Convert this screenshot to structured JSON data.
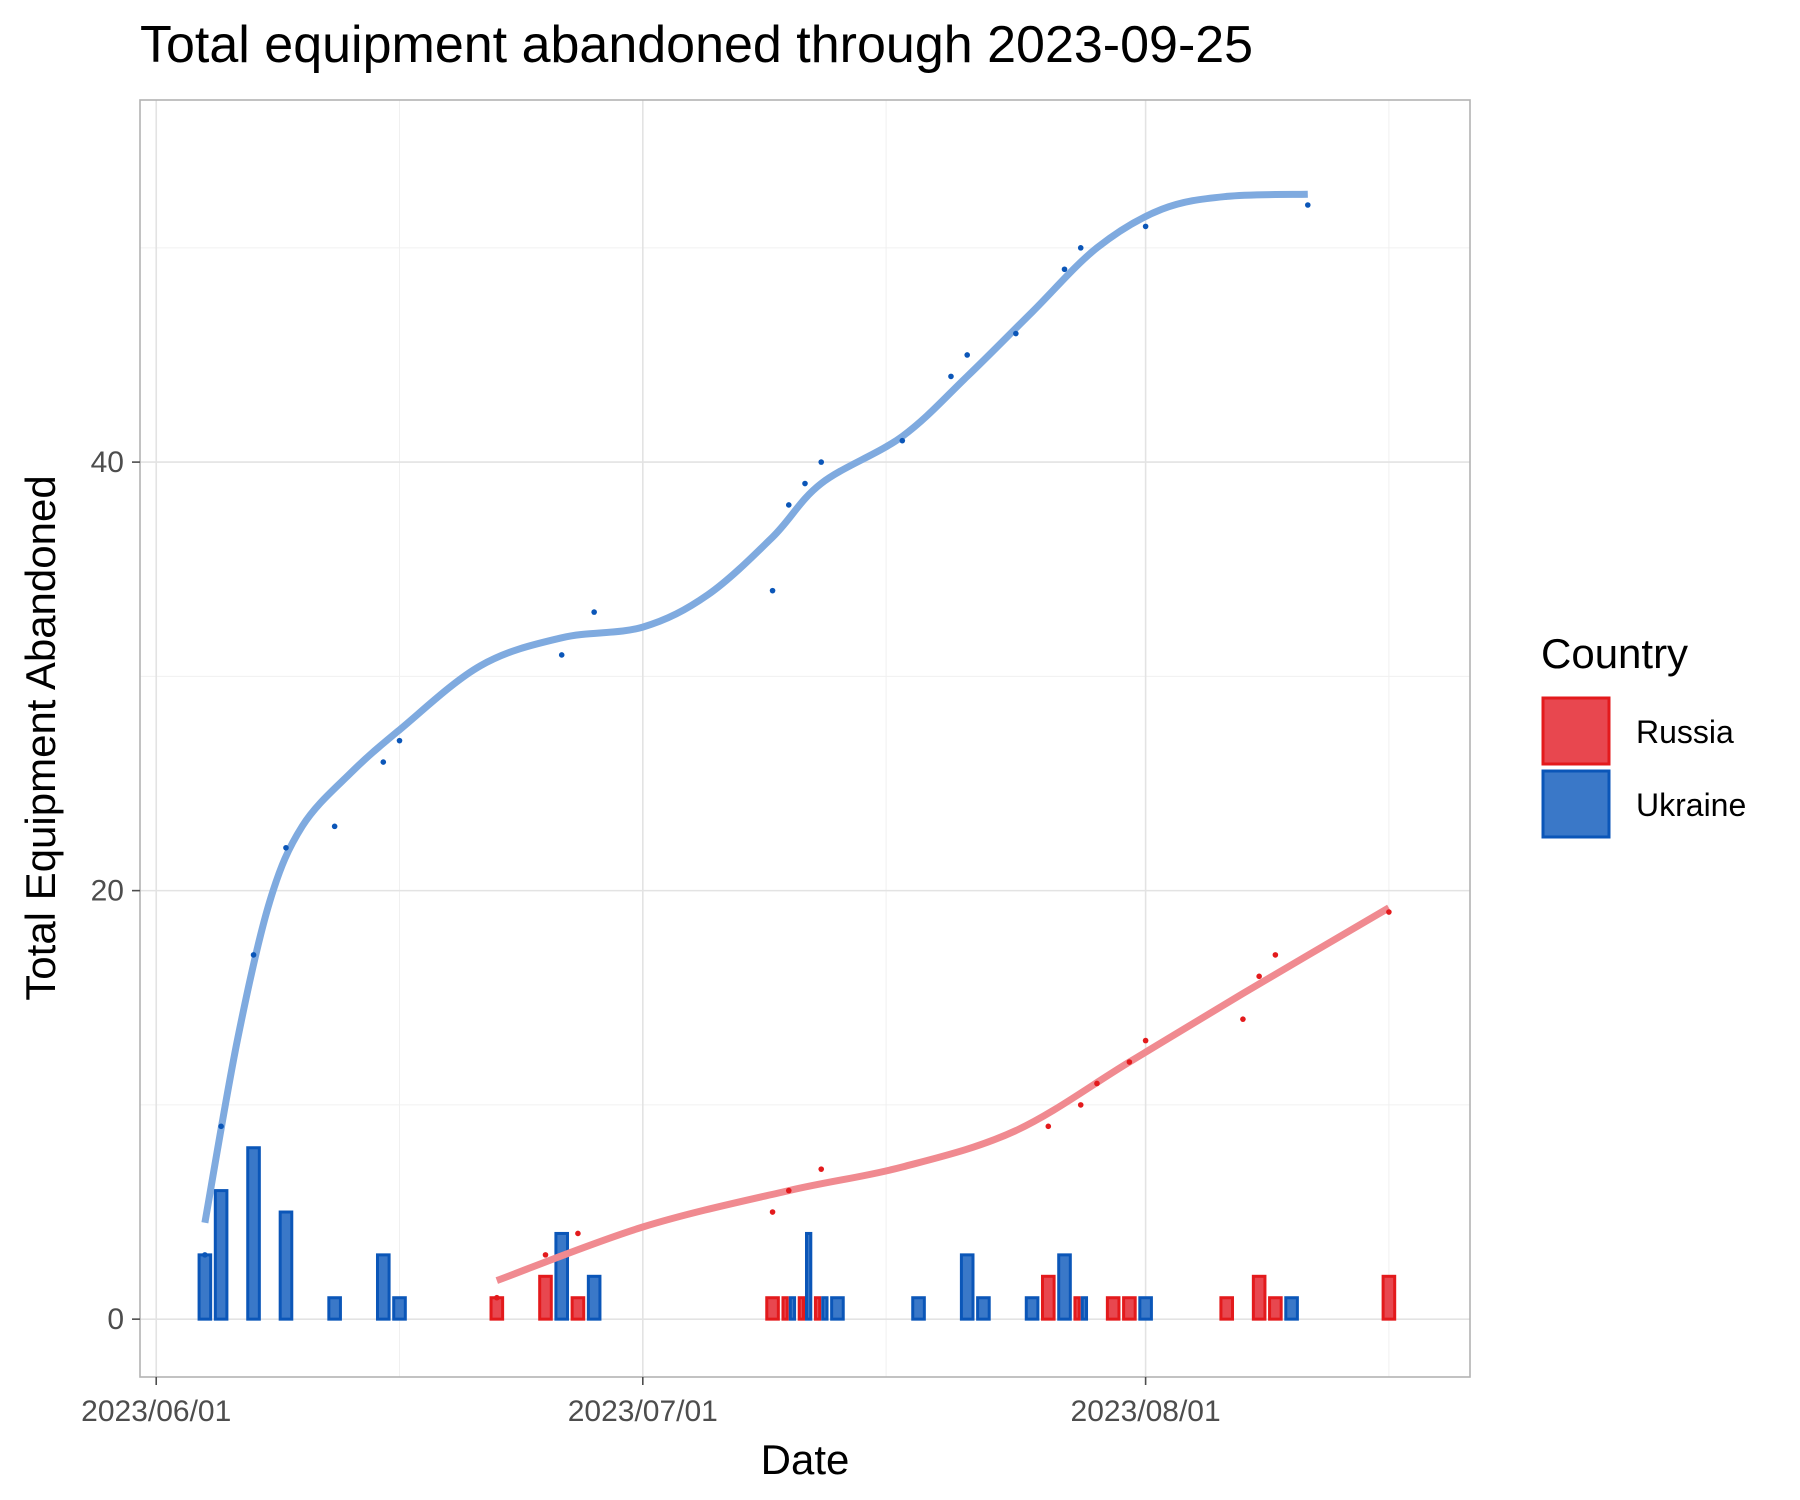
{
  "chart_data": {
    "type": "bar",
    "title": "Total equipment abandoned through 2023-09-25",
    "xlabel": "Date",
    "ylabel": "Total Equipment Abandoned",
    "x_tick_labels": [
      "2023/06/01",
      "2023/07/01",
      "2023/08/01"
    ],
    "y_tick_labels": [
      "0",
      "20",
      "40"
    ],
    "y_ticks": [
      0,
      20,
      40
    ],
    "xlim": [
      "2023-05-31",
      "2023-08-21"
    ],
    "ylim": [
      -2.7,
      56.9
    ],
    "grid": true,
    "legend": {
      "title": "Country",
      "position": "right",
      "entries": [
        "Russia",
        "Ukraine"
      ]
    },
    "colors": {
      "Russia": {
        "fill": "#e8474f",
        "stroke": "#e31a1c",
        "line": "#f08a90"
      },
      "Ukraine": {
        "fill": "#3a78c8",
        "stroke": "#0b56b8",
        "line": "#7faadf"
      }
    },
    "series": [
      {
        "name": "Russia",
        "daily": [
          {
            "date": "2023-06-22",
            "value": 1
          },
          {
            "date": "2023-06-25",
            "value": 2
          },
          {
            "date": "2023-06-27",
            "value": 1
          },
          {
            "date": "2023-07-09",
            "value": 1
          },
          {
            "date": "2023-07-10",
            "value": 1
          },
          {
            "date": "2023-07-11",
            "value": 1
          },
          {
            "date": "2023-07-12",
            "value": 1
          },
          {
            "date": "2023-07-26",
            "value": 2
          },
          {
            "date": "2023-07-28",
            "value": 1
          },
          {
            "date": "2023-07-30",
            "value": 1
          },
          {
            "date": "2023-07-31",
            "value": 1
          },
          {
            "date": "2023-08-06",
            "value": 1
          },
          {
            "date": "2023-08-08",
            "value": 2
          },
          {
            "date": "2023-08-09",
            "value": 1
          },
          {
            "date": "2023-08-16",
            "value": 2
          }
        ],
        "cumulative": [
          {
            "date": "2023-06-22",
            "value": 1
          },
          {
            "date": "2023-06-25",
            "value": 3
          },
          {
            "date": "2023-06-27",
            "value": 4
          },
          {
            "date": "2023-07-09",
            "value": 5
          },
          {
            "date": "2023-07-10",
            "value": 6
          },
          {
            "date": "2023-07-12",
            "value": 7
          },
          {
            "date": "2023-07-26",
            "value": 9
          },
          {
            "date": "2023-07-28",
            "value": 10
          },
          {
            "date": "2023-07-29",
            "value": 11
          },
          {
            "date": "2023-07-31",
            "value": 12
          },
          {
            "date": "2023-08-01",
            "value": 13
          },
          {
            "date": "2023-08-07",
            "value": 14
          },
          {
            "date": "2023-08-08",
            "value": 16
          },
          {
            "date": "2023-08-09",
            "value": 17
          },
          {
            "date": "2023-08-16",
            "value": 19
          }
        ],
        "smooth": [
          {
            "date": "2023-06-22",
            "value": 1.8
          },
          {
            "date": "2023-07-01",
            "value": 4.3
          },
          {
            "date": "2023-07-10",
            "value": 6.0
          },
          {
            "date": "2023-07-17",
            "value": 7.1
          },
          {
            "date": "2023-07-24",
            "value": 8.8
          },
          {
            "date": "2023-07-31",
            "value": 12.0
          },
          {
            "date": "2023-08-07",
            "value": 15.2
          },
          {
            "date": "2023-08-16",
            "value": 19.2
          }
        ]
      },
      {
        "name": "Ukraine",
        "daily": [
          {
            "date": "2023-06-04",
            "value": 3
          },
          {
            "date": "2023-06-05",
            "value": 6
          },
          {
            "date": "2023-06-07",
            "value": 8
          },
          {
            "date": "2023-06-09",
            "value": 5
          },
          {
            "date": "2023-06-12",
            "value": 1
          },
          {
            "date": "2023-06-15",
            "value": 3
          },
          {
            "date": "2023-06-16",
            "value": 1
          },
          {
            "date": "2023-06-26",
            "value": 4
          },
          {
            "date": "2023-06-28",
            "value": 2
          },
          {
            "date": "2023-07-10",
            "value": 1
          },
          {
            "date": "2023-07-11",
            "value": 4
          },
          {
            "date": "2023-07-12",
            "value": 1
          },
          {
            "date": "2023-07-13",
            "value": 1
          },
          {
            "date": "2023-07-18",
            "value": 1
          },
          {
            "date": "2023-07-21",
            "value": 3
          },
          {
            "date": "2023-07-22",
            "value": 1
          },
          {
            "date": "2023-07-25",
            "value": 1
          },
          {
            "date": "2023-07-27",
            "value": 3
          },
          {
            "date": "2023-07-28",
            "value": 1
          },
          {
            "date": "2023-08-01",
            "value": 1
          },
          {
            "date": "2023-08-10",
            "value": 1
          }
        ],
        "cumulative": [
          {
            "date": "2023-06-04",
            "value": 3
          },
          {
            "date": "2023-06-05",
            "value": 9
          },
          {
            "date": "2023-06-07",
            "value": 17
          },
          {
            "date": "2023-06-09",
            "value": 22
          },
          {
            "date": "2023-06-12",
            "value": 23
          },
          {
            "date": "2023-06-15",
            "value": 26
          },
          {
            "date": "2023-06-16",
            "value": 27
          },
          {
            "date": "2023-06-26",
            "value": 31
          },
          {
            "date": "2023-06-28",
            "value": 33
          },
          {
            "date": "2023-07-09",
            "value": 34
          },
          {
            "date": "2023-07-10",
            "value": 38
          },
          {
            "date": "2023-07-11",
            "value": 39
          },
          {
            "date": "2023-07-12",
            "value": 40
          },
          {
            "date": "2023-07-17",
            "value": 41
          },
          {
            "date": "2023-07-20",
            "value": 44
          },
          {
            "date": "2023-07-21",
            "value": 45
          },
          {
            "date": "2023-07-24",
            "value": 46
          },
          {
            "date": "2023-07-27",
            "value": 49
          },
          {
            "date": "2023-07-28",
            "value": 50
          },
          {
            "date": "2023-08-01",
            "value": 51
          },
          {
            "date": "2023-08-11",
            "value": 52
          }
        ],
        "smooth": [
          {
            "date": "2023-06-04",
            "value": 4.5
          },
          {
            "date": "2023-06-06",
            "value": 13.0
          },
          {
            "date": "2023-06-08",
            "value": 19.5
          },
          {
            "date": "2023-06-10",
            "value": 23.0
          },
          {
            "date": "2023-06-13",
            "value": 25.5
          },
          {
            "date": "2023-06-16",
            "value": 27.5
          },
          {
            "date": "2023-06-21",
            "value": 30.5
          },
          {
            "date": "2023-06-26",
            "value": 31.8
          },
          {
            "date": "2023-07-01",
            "value": 32.3
          },
          {
            "date": "2023-07-05",
            "value": 33.8
          },
          {
            "date": "2023-07-09",
            "value": 36.5
          },
          {
            "date": "2023-07-12",
            "value": 39.0
          },
          {
            "date": "2023-07-17",
            "value": 41.2
          },
          {
            "date": "2023-07-21",
            "value": 44.0
          },
          {
            "date": "2023-07-25",
            "value": 47.0
          },
          {
            "date": "2023-07-29",
            "value": 50.0
          },
          {
            "date": "2023-08-02",
            "value": 51.8
          },
          {
            "date": "2023-08-06",
            "value": 52.4
          },
          {
            "date": "2023-08-11",
            "value": 52.5
          }
        ]
      }
    ]
  }
}
